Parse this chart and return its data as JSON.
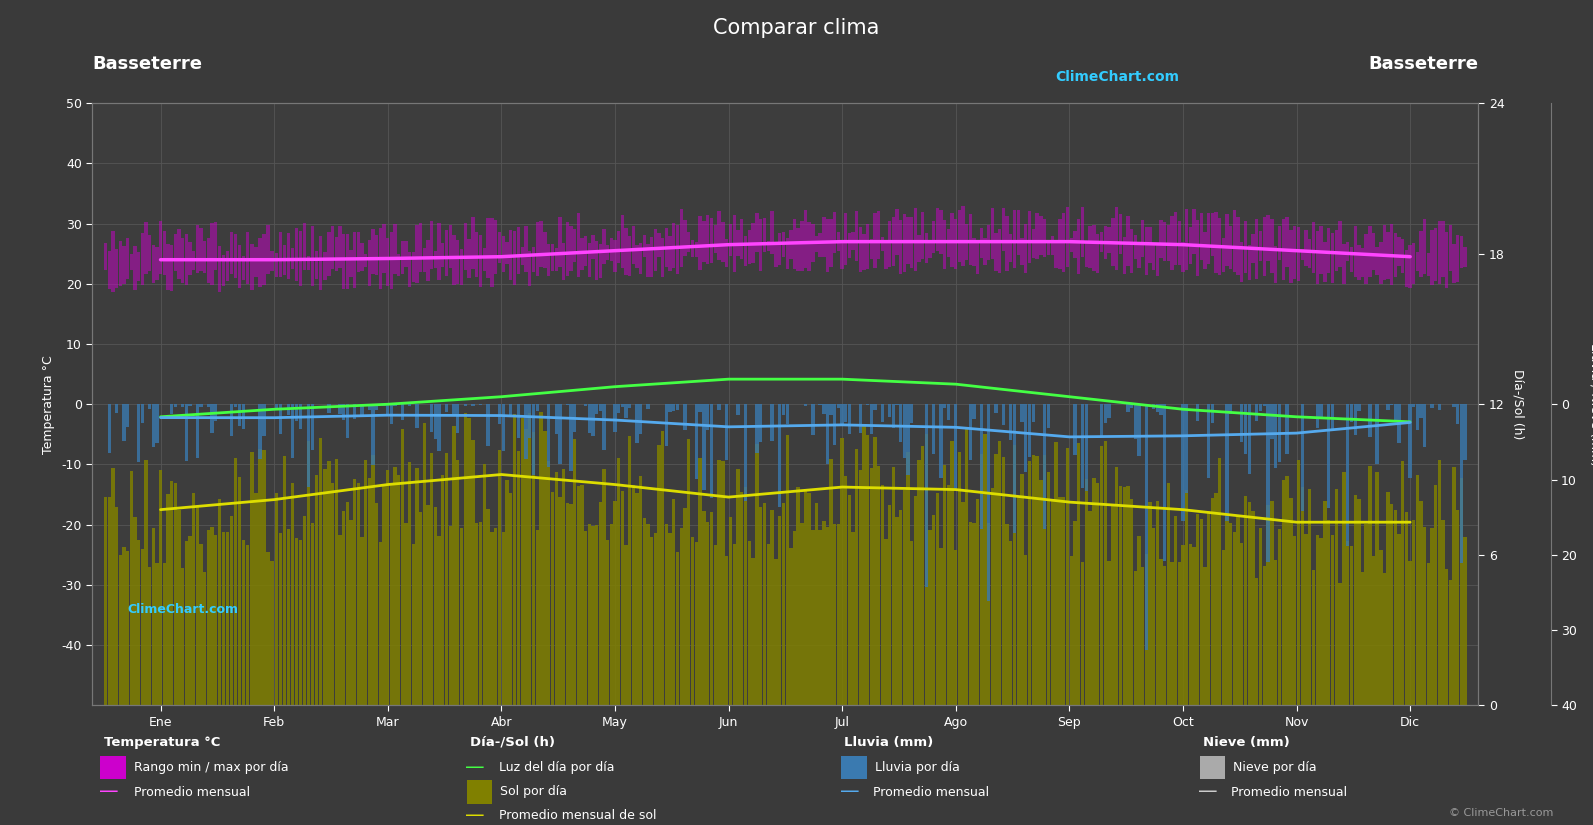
{
  "title": "Comparar clima",
  "location_left": "Basseterre",
  "location_right": "Basseterre",
  "bg_color": "#3a3a3a",
  "plot_bg_color": "#3d3d3d",
  "grid_color": "#555555",
  "months": [
    "Ene",
    "Feb",
    "Mar",
    "Abr",
    "May",
    "Jun",
    "Jul",
    "Ago",
    "Sep",
    "Oct",
    "Nov",
    "Dic"
  ],
  "temp_min": -50,
  "temp_max": 50,
  "temp_avg": [
    24.0,
    24.0,
    24.2,
    24.5,
    25.5,
    26.5,
    27.0,
    27.0,
    27.0,
    26.5,
    25.5,
    24.5
  ],
  "temp_max_avg": [
    27.5,
    27.5,
    27.8,
    28.2,
    29.0,
    29.5,
    29.8,
    30.0,
    30.0,
    29.5,
    28.5,
    27.8
  ],
  "temp_min_avg": [
    20.5,
    20.5,
    21.0,
    21.5,
    22.5,
    23.5,
    23.8,
    23.5,
    23.5,
    23.0,
    22.0,
    21.0
  ],
  "daylight_avg": [
    11.5,
    11.8,
    12.0,
    12.3,
    12.7,
    13.0,
    13.0,
    12.8,
    12.3,
    11.8,
    11.5,
    11.3
  ],
  "sunshine_avg": [
    7.8,
    8.2,
    8.8,
    9.2,
    8.8,
    8.3,
    8.7,
    8.6,
    8.1,
    7.8,
    7.3,
    7.3
  ],
  "rainfall_monthly_avg_mm": [
    55,
    50,
    45,
    45,
    65,
    90,
    85,
    95,
    130,
    130,
    115,
    75
  ],
  "num_days": [
    31,
    28,
    31,
    30,
    31,
    30,
    31,
    31,
    30,
    31,
    30,
    31
  ],
  "sol_max": 24,
  "lluvia_max": 40,
  "color_temp_band": "#cc00cc",
  "color_temp_band_alpha": 0.5,
  "color_temp_avg_line": "#ff44ff",
  "color_daylight_line": "#44ff44",
  "color_sunshine_band": "#808000",
  "color_sunshine_band_alpha": 0.85,
  "color_sunshine_avg_line": "#dddd00",
  "color_rain_bars": "#3a7ab0",
  "color_rain_bars_alpha": 0.8,
  "color_rain_avg_line": "#55aaee",
  "color_snow_bars": "#aaaaaa",
  "color_snow_avg_line": "#cccccc",
  "watermark_color": "#33ccff",
  "title_fontsize": 15,
  "axis_label_fontsize": 9,
  "tick_fontsize": 9,
  "legend_fontsize": 9,
  "sol_ticks": [
    0,
    6,
    12,
    18,
    24
  ],
  "lluvia_ticks": [
    0,
    10,
    20,
    30,
    40
  ],
  "temp_yticks": [
    -40,
    -30,
    -20,
    -10,
    0,
    10,
    20,
    30,
    40,
    50
  ]
}
